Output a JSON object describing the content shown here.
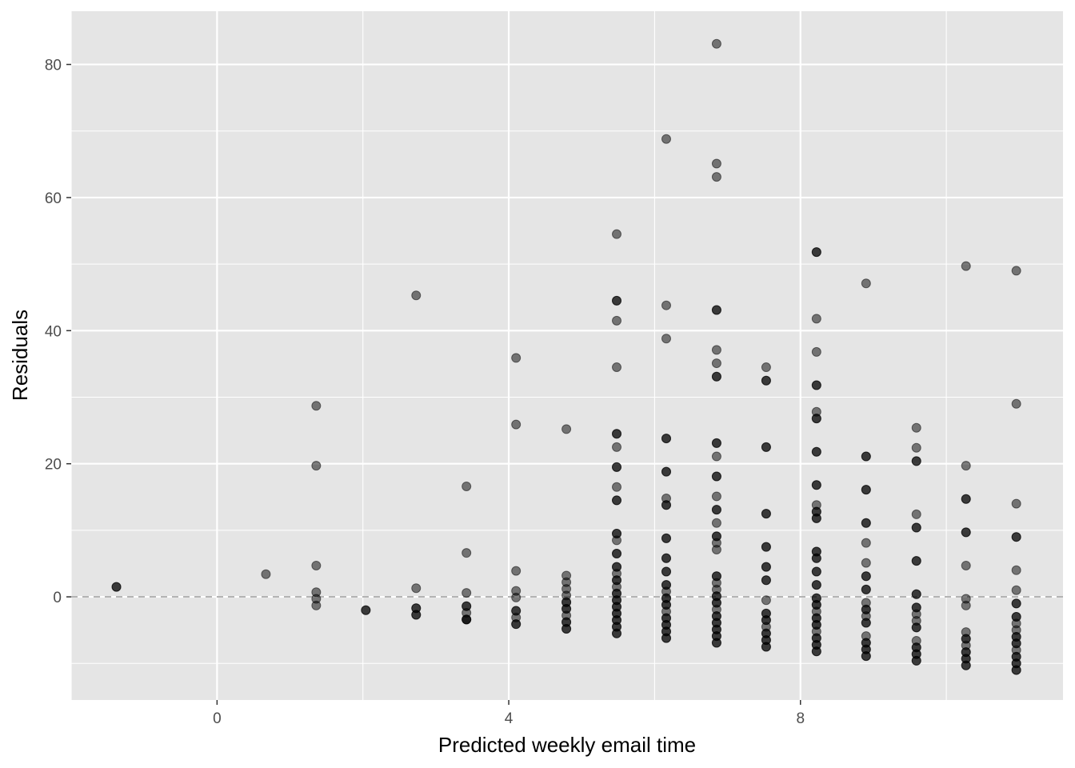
{
  "chart_data": {
    "type": "scatter",
    "title": "",
    "xlabel": "Predicted weekly email time",
    "ylabel": "Residuals",
    "xlim": [
      -2,
      11.6
    ],
    "ylim": [
      -15.5,
      88
    ],
    "x_ticks": [
      0,
      4,
      8
    ],
    "x_tick_labels": [
      "0",
      "4",
      "8"
    ],
    "y_ticks": [
      0,
      20,
      40,
      60,
      80
    ],
    "y_tick_labels": [
      "0",
      "20",
      "40",
      "60",
      "80"
    ],
    "x_minor_ticks": [
      -2,
      2,
      6,
      10
    ],
    "y_minor_ticks": [
      -10,
      10,
      30,
      50,
      70
    ],
    "grid": true,
    "reference_line": {
      "y": 0,
      "style": "dashed",
      "color": "#b3b3b3"
    },
    "colors": {
      "panel": "#e5e5e5",
      "grid": "#ffffff",
      "point": "#000000",
      "point_alpha": 0.5
    },
    "points": [
      {
        "x": -1.38,
        "y": 1.5
      },
      {
        "x": -1.38,
        "y": 1.5
      },
      {
        "x": 0.67,
        "y": 3.4
      },
      {
        "x": 1.36,
        "y": 28.7
      },
      {
        "x": 1.36,
        "y": 19.7
      },
      {
        "x": 1.36,
        "y": 4.7
      },
      {
        "x": 1.36,
        "y": 0.7
      },
      {
        "x": 1.36,
        "y": -0.3
      },
      {
        "x": 1.36,
        "y": -1.3
      },
      {
        "x": 2.04,
        "y": -2.0
      },
      {
        "x": 2.04,
        "y": -2.0
      },
      {
        "x": 2.73,
        "y": 45.3
      },
      {
        "x": 2.73,
        "y": 1.3
      },
      {
        "x": 2.73,
        "y": -1.7
      },
      {
        "x": 2.73,
        "y": -1.7
      },
      {
        "x": 2.73,
        "y": -2.7
      },
      {
        "x": 2.73,
        "y": -2.7
      },
      {
        "x": 3.42,
        "y": 16.6
      },
      {
        "x": 3.42,
        "y": 6.6
      },
      {
        "x": 3.42,
        "y": 0.6
      },
      {
        "x": 3.42,
        "y": -1.4
      },
      {
        "x": 3.42,
        "y": -1.4
      },
      {
        "x": 3.42,
        "y": -2.4
      },
      {
        "x": 3.42,
        "y": -3.4
      },
      {
        "x": 3.42,
        "y": -3.4
      },
      {
        "x": 3.42,
        "y": -3.4
      },
      {
        "x": 4.1,
        "y": 35.9
      },
      {
        "x": 4.1,
        "y": 25.9
      },
      {
        "x": 4.1,
        "y": 3.9
      },
      {
        "x": 4.1,
        "y": 0.9
      },
      {
        "x": 4.1,
        "y": -0.1
      },
      {
        "x": 4.1,
        "y": -2.1
      },
      {
        "x": 4.1,
        "y": -2.1
      },
      {
        "x": 4.1,
        "y": -3.1
      },
      {
        "x": 4.1,
        "y": -4.1
      },
      {
        "x": 4.1,
        "y": -4.1
      },
      {
        "x": 4.79,
        "y": 25.2
      },
      {
        "x": 4.79,
        "y": 3.2
      },
      {
        "x": 4.79,
        "y": 2.2
      },
      {
        "x": 4.79,
        "y": 1.2
      },
      {
        "x": 4.79,
        "y": 0.2
      },
      {
        "x": 4.79,
        "y": -0.8
      },
      {
        "x": 4.79,
        "y": -0.8
      },
      {
        "x": 4.79,
        "y": -1.8
      },
      {
        "x": 4.79,
        "y": -1.8
      },
      {
        "x": 4.79,
        "y": -2.8
      },
      {
        "x": 4.79,
        "y": -3.8
      },
      {
        "x": 4.79,
        "y": -3.8
      },
      {
        "x": 4.79,
        "y": -4.8
      },
      {
        "x": 4.79,
        "y": -4.8
      },
      {
        "x": 5.48,
        "y": 54.5
      },
      {
        "x": 5.48,
        "y": 44.5
      },
      {
        "x": 5.48,
        "y": 44.5
      },
      {
        "x": 5.48,
        "y": 41.5
      },
      {
        "x": 5.48,
        "y": 34.5
      },
      {
        "x": 5.48,
        "y": 24.5
      },
      {
        "x": 5.48,
        "y": 24.5
      },
      {
        "x": 5.48,
        "y": 22.5
      },
      {
        "x": 5.48,
        "y": 19.5
      },
      {
        "x": 5.48,
        "y": 19.5
      },
      {
        "x": 5.48,
        "y": 16.5
      },
      {
        "x": 5.48,
        "y": 14.5
      },
      {
        "x": 5.48,
        "y": 14.5
      },
      {
        "x": 5.48,
        "y": 9.5
      },
      {
        "x": 5.48,
        "y": 9.5
      },
      {
        "x": 5.48,
        "y": 8.5
      },
      {
        "x": 5.48,
        "y": 6.5
      },
      {
        "x": 5.48,
        "y": 6.5
      },
      {
        "x": 5.48,
        "y": 4.5
      },
      {
        "x": 5.48,
        "y": 4.5
      },
      {
        "x": 5.48,
        "y": 3.5
      },
      {
        "x": 5.48,
        "y": 2.5
      },
      {
        "x": 5.48,
        "y": 2.5
      },
      {
        "x": 5.48,
        "y": 1.5
      },
      {
        "x": 5.48,
        "y": 0.5
      },
      {
        "x": 5.48,
        "y": 0.5
      },
      {
        "x": 5.48,
        "y": -0.5
      },
      {
        "x": 5.48,
        "y": -0.5
      },
      {
        "x": 5.48,
        "y": -1.5
      },
      {
        "x": 5.48,
        "y": -1.5
      },
      {
        "x": 5.48,
        "y": -2.5
      },
      {
        "x": 5.48,
        "y": -2.5
      },
      {
        "x": 5.48,
        "y": -3.5
      },
      {
        "x": 5.48,
        "y": -3.5
      },
      {
        "x": 5.48,
        "y": -4.5
      },
      {
        "x": 5.48,
        "y": -4.5
      },
      {
        "x": 5.48,
        "y": -5.5
      },
      {
        "x": 5.48,
        "y": -5.5
      },
      {
        "x": 6.16,
        "y": 68.8
      },
      {
        "x": 6.16,
        "y": 43.8
      },
      {
        "x": 6.16,
        "y": 38.8
      },
      {
        "x": 6.16,
        "y": 23.8
      },
      {
        "x": 6.16,
        "y": 23.8
      },
      {
        "x": 6.16,
        "y": 18.8
      },
      {
        "x": 6.16,
        "y": 18.8
      },
      {
        "x": 6.16,
        "y": 14.8
      },
      {
        "x": 6.16,
        "y": 13.8
      },
      {
        "x": 6.16,
        "y": 13.8
      },
      {
        "x": 6.16,
        "y": 8.8
      },
      {
        "x": 6.16,
        "y": 8.8
      },
      {
        "x": 6.16,
        "y": 5.8
      },
      {
        "x": 6.16,
        "y": 5.8
      },
      {
        "x": 6.16,
        "y": 3.8
      },
      {
        "x": 6.16,
        "y": 3.8
      },
      {
        "x": 6.16,
        "y": 1.8
      },
      {
        "x": 6.16,
        "y": 1.8
      },
      {
        "x": 6.16,
        "y": 0.8
      },
      {
        "x": 6.16,
        "y": -0.2
      },
      {
        "x": 6.16,
        "y": -0.2
      },
      {
        "x": 6.16,
        "y": -1.2
      },
      {
        "x": 6.16,
        "y": -1.2
      },
      {
        "x": 6.16,
        "y": -2.2
      },
      {
        "x": 6.16,
        "y": -3.2
      },
      {
        "x": 6.16,
        "y": -3.2
      },
      {
        "x": 6.16,
        "y": -4.2
      },
      {
        "x": 6.16,
        "y": -4.2
      },
      {
        "x": 6.16,
        "y": -5.2
      },
      {
        "x": 6.16,
        "y": -5.2
      },
      {
        "x": 6.16,
        "y": -6.2
      },
      {
        "x": 6.16,
        "y": -6.2
      },
      {
        "x": 6.85,
        "y": 83.1
      },
      {
        "x": 6.85,
        "y": 65.1
      },
      {
        "x": 6.85,
        "y": 63.1
      },
      {
        "x": 6.85,
        "y": 43.1
      },
      {
        "x": 6.85,
        "y": 43.1
      },
      {
        "x": 6.85,
        "y": 37.1
      },
      {
        "x": 6.85,
        "y": 35.1
      },
      {
        "x": 6.85,
        "y": 33.1
      },
      {
        "x": 6.85,
        "y": 33.1
      },
      {
        "x": 6.85,
        "y": 23.1
      },
      {
        "x": 6.85,
        "y": 23.1
      },
      {
        "x": 6.85,
        "y": 21.1
      },
      {
        "x": 6.85,
        "y": 18.1
      },
      {
        "x": 6.85,
        "y": 18.1
      },
      {
        "x": 6.85,
        "y": 15.1
      },
      {
        "x": 6.85,
        "y": 13.1
      },
      {
        "x": 6.85,
        "y": 13.1
      },
      {
        "x": 6.85,
        "y": 11.1
      },
      {
        "x": 6.85,
        "y": 9.1
      },
      {
        "x": 6.85,
        "y": 9.1
      },
      {
        "x": 6.85,
        "y": 8.1
      },
      {
        "x": 6.85,
        "y": 7.1
      },
      {
        "x": 6.85,
        "y": 3.1
      },
      {
        "x": 6.85,
        "y": 3.1
      },
      {
        "x": 6.85,
        "y": 2.1
      },
      {
        "x": 6.85,
        "y": 1.1
      },
      {
        "x": 6.85,
        "y": 0.1
      },
      {
        "x": 6.85,
        "y": 0.1
      },
      {
        "x": 6.85,
        "y": -0.9
      },
      {
        "x": 6.85,
        "y": -0.9
      },
      {
        "x": 6.85,
        "y": -1.9
      },
      {
        "x": 6.85,
        "y": -2.9
      },
      {
        "x": 6.85,
        "y": -2.9
      },
      {
        "x": 6.85,
        "y": -3.9
      },
      {
        "x": 6.85,
        "y": -3.9
      },
      {
        "x": 6.85,
        "y": -4.9
      },
      {
        "x": 6.85,
        "y": -4.9
      },
      {
        "x": 6.85,
        "y": -5.9
      },
      {
        "x": 6.85,
        "y": -5.9
      },
      {
        "x": 6.85,
        "y": -6.9
      },
      {
        "x": 6.85,
        "y": -6.9
      },
      {
        "x": 7.53,
        "y": 34.5
      },
      {
        "x": 7.53,
        "y": 32.5
      },
      {
        "x": 7.53,
        "y": 32.5
      },
      {
        "x": 7.53,
        "y": 22.5
      },
      {
        "x": 7.53,
        "y": 22.5
      },
      {
        "x": 7.53,
        "y": 12.5
      },
      {
        "x": 7.53,
        "y": 12.5
      },
      {
        "x": 7.53,
        "y": 7.5
      },
      {
        "x": 7.53,
        "y": 7.5
      },
      {
        "x": 7.53,
        "y": 4.5
      },
      {
        "x": 7.53,
        "y": 4.5
      },
      {
        "x": 7.53,
        "y": 2.5
      },
      {
        "x": 7.53,
        "y": 2.5
      },
      {
        "x": 7.53,
        "y": -0.5
      },
      {
        "x": 7.53,
        "y": -2.5
      },
      {
        "x": 7.53,
        "y": -2.5
      },
      {
        "x": 7.53,
        "y": -3.5
      },
      {
        "x": 7.53,
        "y": -3.5
      },
      {
        "x": 7.53,
        "y": -4.5
      },
      {
        "x": 7.53,
        "y": -5.5
      },
      {
        "x": 7.53,
        "y": -5.5
      },
      {
        "x": 7.53,
        "y": -6.5
      },
      {
        "x": 7.53,
        "y": -6.5
      },
      {
        "x": 7.53,
        "y": -7.5
      },
      {
        "x": 7.53,
        "y": -7.5
      },
      {
        "x": 8.22,
        "y": 51.8
      },
      {
        "x": 8.22,
        "y": 51.8
      },
      {
        "x": 8.22,
        "y": 41.8
      },
      {
        "x": 8.22,
        "y": 36.8
      },
      {
        "x": 8.22,
        "y": 31.8
      },
      {
        "x": 8.22,
        "y": 31.8
      },
      {
        "x": 8.22,
        "y": 27.8
      },
      {
        "x": 8.22,
        "y": 26.8
      },
      {
        "x": 8.22,
        "y": 26.8
      },
      {
        "x": 8.22,
        "y": 21.8
      },
      {
        "x": 8.22,
        "y": 21.8
      },
      {
        "x": 8.22,
        "y": 16.8
      },
      {
        "x": 8.22,
        "y": 16.8
      },
      {
        "x": 8.22,
        "y": 13.8
      },
      {
        "x": 8.22,
        "y": 12.8
      },
      {
        "x": 8.22,
        "y": 12.8
      },
      {
        "x": 8.22,
        "y": 11.8
      },
      {
        "x": 8.22,
        "y": 11.8
      },
      {
        "x": 8.22,
        "y": 6.8
      },
      {
        "x": 8.22,
        "y": 6.8
      },
      {
        "x": 8.22,
        "y": 5.8
      },
      {
        "x": 8.22,
        "y": 5.8
      },
      {
        "x": 8.22,
        "y": 3.8
      },
      {
        "x": 8.22,
        "y": 3.8
      },
      {
        "x": 8.22,
        "y": 1.8
      },
      {
        "x": 8.22,
        "y": 1.8
      },
      {
        "x": 8.22,
        "y": -0.2
      },
      {
        "x": 8.22,
        "y": -0.2
      },
      {
        "x": 8.22,
        "y": -1.2
      },
      {
        "x": 8.22,
        "y": -1.2
      },
      {
        "x": 8.22,
        "y": -2.2
      },
      {
        "x": 8.22,
        "y": -3.2
      },
      {
        "x": 8.22,
        "y": -3.2
      },
      {
        "x": 8.22,
        "y": -4.2
      },
      {
        "x": 8.22,
        "y": -4.2
      },
      {
        "x": 8.22,
        "y": -5.2
      },
      {
        "x": 8.22,
        "y": -6.2
      },
      {
        "x": 8.22,
        "y": -6.2
      },
      {
        "x": 8.22,
        "y": -7.2
      },
      {
        "x": 8.22,
        "y": -7.2
      },
      {
        "x": 8.22,
        "y": -8.2
      },
      {
        "x": 8.22,
        "y": -8.2
      },
      {
        "x": 8.9,
        "y": 47.1
      },
      {
        "x": 8.9,
        "y": 21.1
      },
      {
        "x": 8.9,
        "y": 21.1
      },
      {
        "x": 8.9,
        "y": 16.1
      },
      {
        "x": 8.9,
        "y": 16.1
      },
      {
        "x": 8.9,
        "y": 11.1
      },
      {
        "x": 8.9,
        "y": 11.1
      },
      {
        "x": 8.9,
        "y": 8.1
      },
      {
        "x": 8.9,
        "y": 5.1
      },
      {
        "x": 8.9,
        "y": 3.1
      },
      {
        "x": 8.9,
        "y": 3.1
      },
      {
        "x": 8.9,
        "y": 1.1
      },
      {
        "x": 8.9,
        "y": 1.1
      },
      {
        "x": 8.9,
        "y": -0.9
      },
      {
        "x": 8.9,
        "y": -1.9
      },
      {
        "x": 8.9,
        "y": -1.9
      },
      {
        "x": 8.9,
        "y": -2.9
      },
      {
        "x": 8.9,
        "y": -3.9
      },
      {
        "x": 8.9,
        "y": -3.9
      },
      {
        "x": 8.9,
        "y": -5.9
      },
      {
        "x": 8.9,
        "y": -6.9
      },
      {
        "x": 8.9,
        "y": -6.9
      },
      {
        "x": 8.9,
        "y": -7.9
      },
      {
        "x": 8.9,
        "y": -7.9
      },
      {
        "x": 8.9,
        "y": -8.9
      },
      {
        "x": 8.9,
        "y": -8.9
      },
      {
        "x": 9.59,
        "y": 25.4
      },
      {
        "x": 9.59,
        "y": 22.4
      },
      {
        "x": 9.59,
        "y": 20.4
      },
      {
        "x": 9.59,
        "y": 20.4
      },
      {
        "x": 9.59,
        "y": 12.4
      },
      {
        "x": 9.59,
        "y": 10.4
      },
      {
        "x": 9.59,
        "y": 10.4
      },
      {
        "x": 9.59,
        "y": 5.4
      },
      {
        "x": 9.59,
        "y": 5.4
      },
      {
        "x": 9.59,
        "y": 0.4
      },
      {
        "x": 9.59,
        "y": 0.4
      },
      {
        "x": 9.59,
        "y": -1.6
      },
      {
        "x": 9.59,
        "y": -1.6
      },
      {
        "x": 9.59,
        "y": -2.6
      },
      {
        "x": 9.59,
        "y": -3.6
      },
      {
        "x": 9.59,
        "y": -4.6
      },
      {
        "x": 9.59,
        "y": -4.6
      },
      {
        "x": 9.59,
        "y": -6.6
      },
      {
        "x": 9.59,
        "y": -7.6
      },
      {
        "x": 9.59,
        "y": -7.6
      },
      {
        "x": 9.59,
        "y": -8.6
      },
      {
        "x": 9.59,
        "y": -8.6
      },
      {
        "x": 9.59,
        "y": -9.6
      },
      {
        "x": 9.59,
        "y": -9.6
      },
      {
        "x": 10.27,
        "y": 49.7
      },
      {
        "x": 10.27,
        "y": 19.7
      },
      {
        "x": 10.27,
        "y": 14.7
      },
      {
        "x": 10.27,
        "y": 14.7
      },
      {
        "x": 10.27,
        "y": 9.7
      },
      {
        "x": 10.27,
        "y": 9.7
      },
      {
        "x": 10.27,
        "y": 4.7
      },
      {
        "x": 10.27,
        "y": -0.3
      },
      {
        "x": 10.27,
        "y": -1.3
      },
      {
        "x": 10.27,
        "y": -5.3
      },
      {
        "x": 10.27,
        "y": -6.3
      },
      {
        "x": 10.27,
        "y": -6.3
      },
      {
        "x": 10.27,
        "y": -7.3
      },
      {
        "x": 10.27,
        "y": -8.3
      },
      {
        "x": 10.27,
        "y": -8.3
      },
      {
        "x": 10.27,
        "y": -9.3
      },
      {
        "x": 10.27,
        "y": -9.3
      },
      {
        "x": 10.27,
        "y": -10.3
      },
      {
        "x": 10.27,
        "y": -10.3
      },
      {
        "x": 10.96,
        "y": 49.0
      },
      {
        "x": 10.96,
        "y": 29.0
      },
      {
        "x": 10.96,
        "y": 14.0
      },
      {
        "x": 10.96,
        "y": 9.0
      },
      {
        "x": 10.96,
        "y": 9.0
      },
      {
        "x": 10.96,
        "y": 4.0
      },
      {
        "x": 10.96,
        "y": 1.0
      },
      {
        "x": 10.96,
        "y": -1.0
      },
      {
        "x": 10.96,
        "y": -1.0
      },
      {
        "x": 10.96,
        "y": -3.0
      },
      {
        "x": 10.96,
        "y": -3.0
      },
      {
        "x": 10.96,
        "y": -4.0
      },
      {
        "x": 10.96,
        "y": -5.0
      },
      {
        "x": 10.96,
        "y": -6.0
      },
      {
        "x": 10.96,
        "y": -6.0
      },
      {
        "x": 10.96,
        "y": -7.0
      },
      {
        "x": 10.96,
        "y": -7.0
      },
      {
        "x": 10.96,
        "y": -8.0
      },
      {
        "x": 10.96,
        "y": -9.0
      },
      {
        "x": 10.96,
        "y": -9.0
      },
      {
        "x": 10.96,
        "y": -10.0
      },
      {
        "x": 10.96,
        "y": -10.0
      },
      {
        "x": 10.96,
        "y": -11.0
      },
      {
        "x": 10.96,
        "y": -11.0
      }
    ]
  }
}
